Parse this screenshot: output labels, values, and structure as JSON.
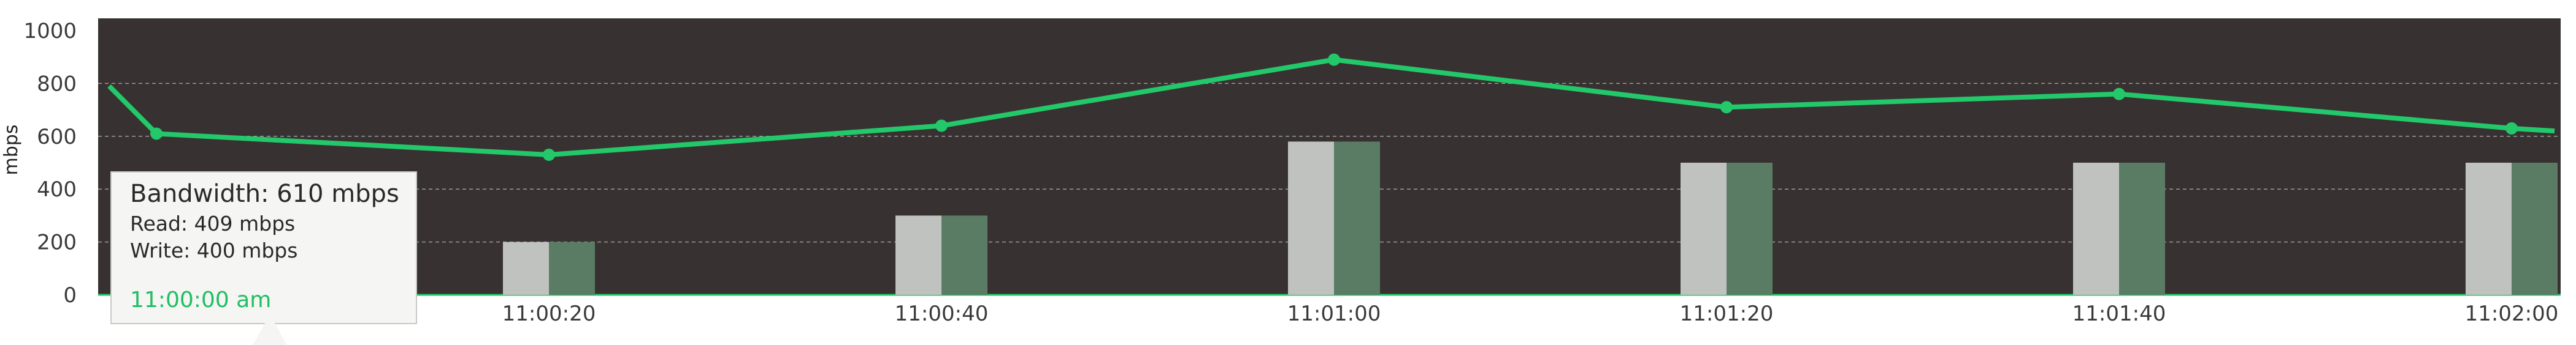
{
  "chart_data": {
    "type": "bar",
    "ylabel": "mbps",
    "ylim": [
      0,
      1000
    ],
    "yticks": [
      0,
      200,
      400,
      600,
      800,
      1000
    ],
    "grid": true,
    "background_color": "#373231",
    "colors": {
      "read": "#c0c2c0",
      "write": "#5a7b64",
      "bandwidth": "#23c86a"
    },
    "categories": [
      "11:00:00",
      "11:00:20",
      "11:00:40",
      "11:01:00",
      "11:01:20",
      "11:01:40",
      "11:02:00"
    ],
    "x_tick_labels": [
      "",
      "11:00:20",
      "11:00:40",
      "11:01:00",
      "11:01:20",
      "11:01:40",
      "11:02:00"
    ],
    "series": [
      {
        "name": "Read",
        "kind": "bar",
        "values": [
          409,
          200,
          300,
          580,
          500,
          500,
          500
        ]
      },
      {
        "name": "Write",
        "kind": "bar",
        "values": [
          400,
          200,
          300,
          580,
          500,
          500,
          500
        ]
      },
      {
        "name": "Bandwidth",
        "kind": "line",
        "values": [
          610,
          530,
          640,
          890,
          710,
          760,
          630
        ],
        "start_value": 790,
        "end_value": 620
      }
    ]
  },
  "tooltip": {
    "title": "Bandwidth: 610 mbps",
    "read": "Read: 409 mbps",
    "write": "Write: 400 mbps",
    "time": "11:00:00 am"
  }
}
